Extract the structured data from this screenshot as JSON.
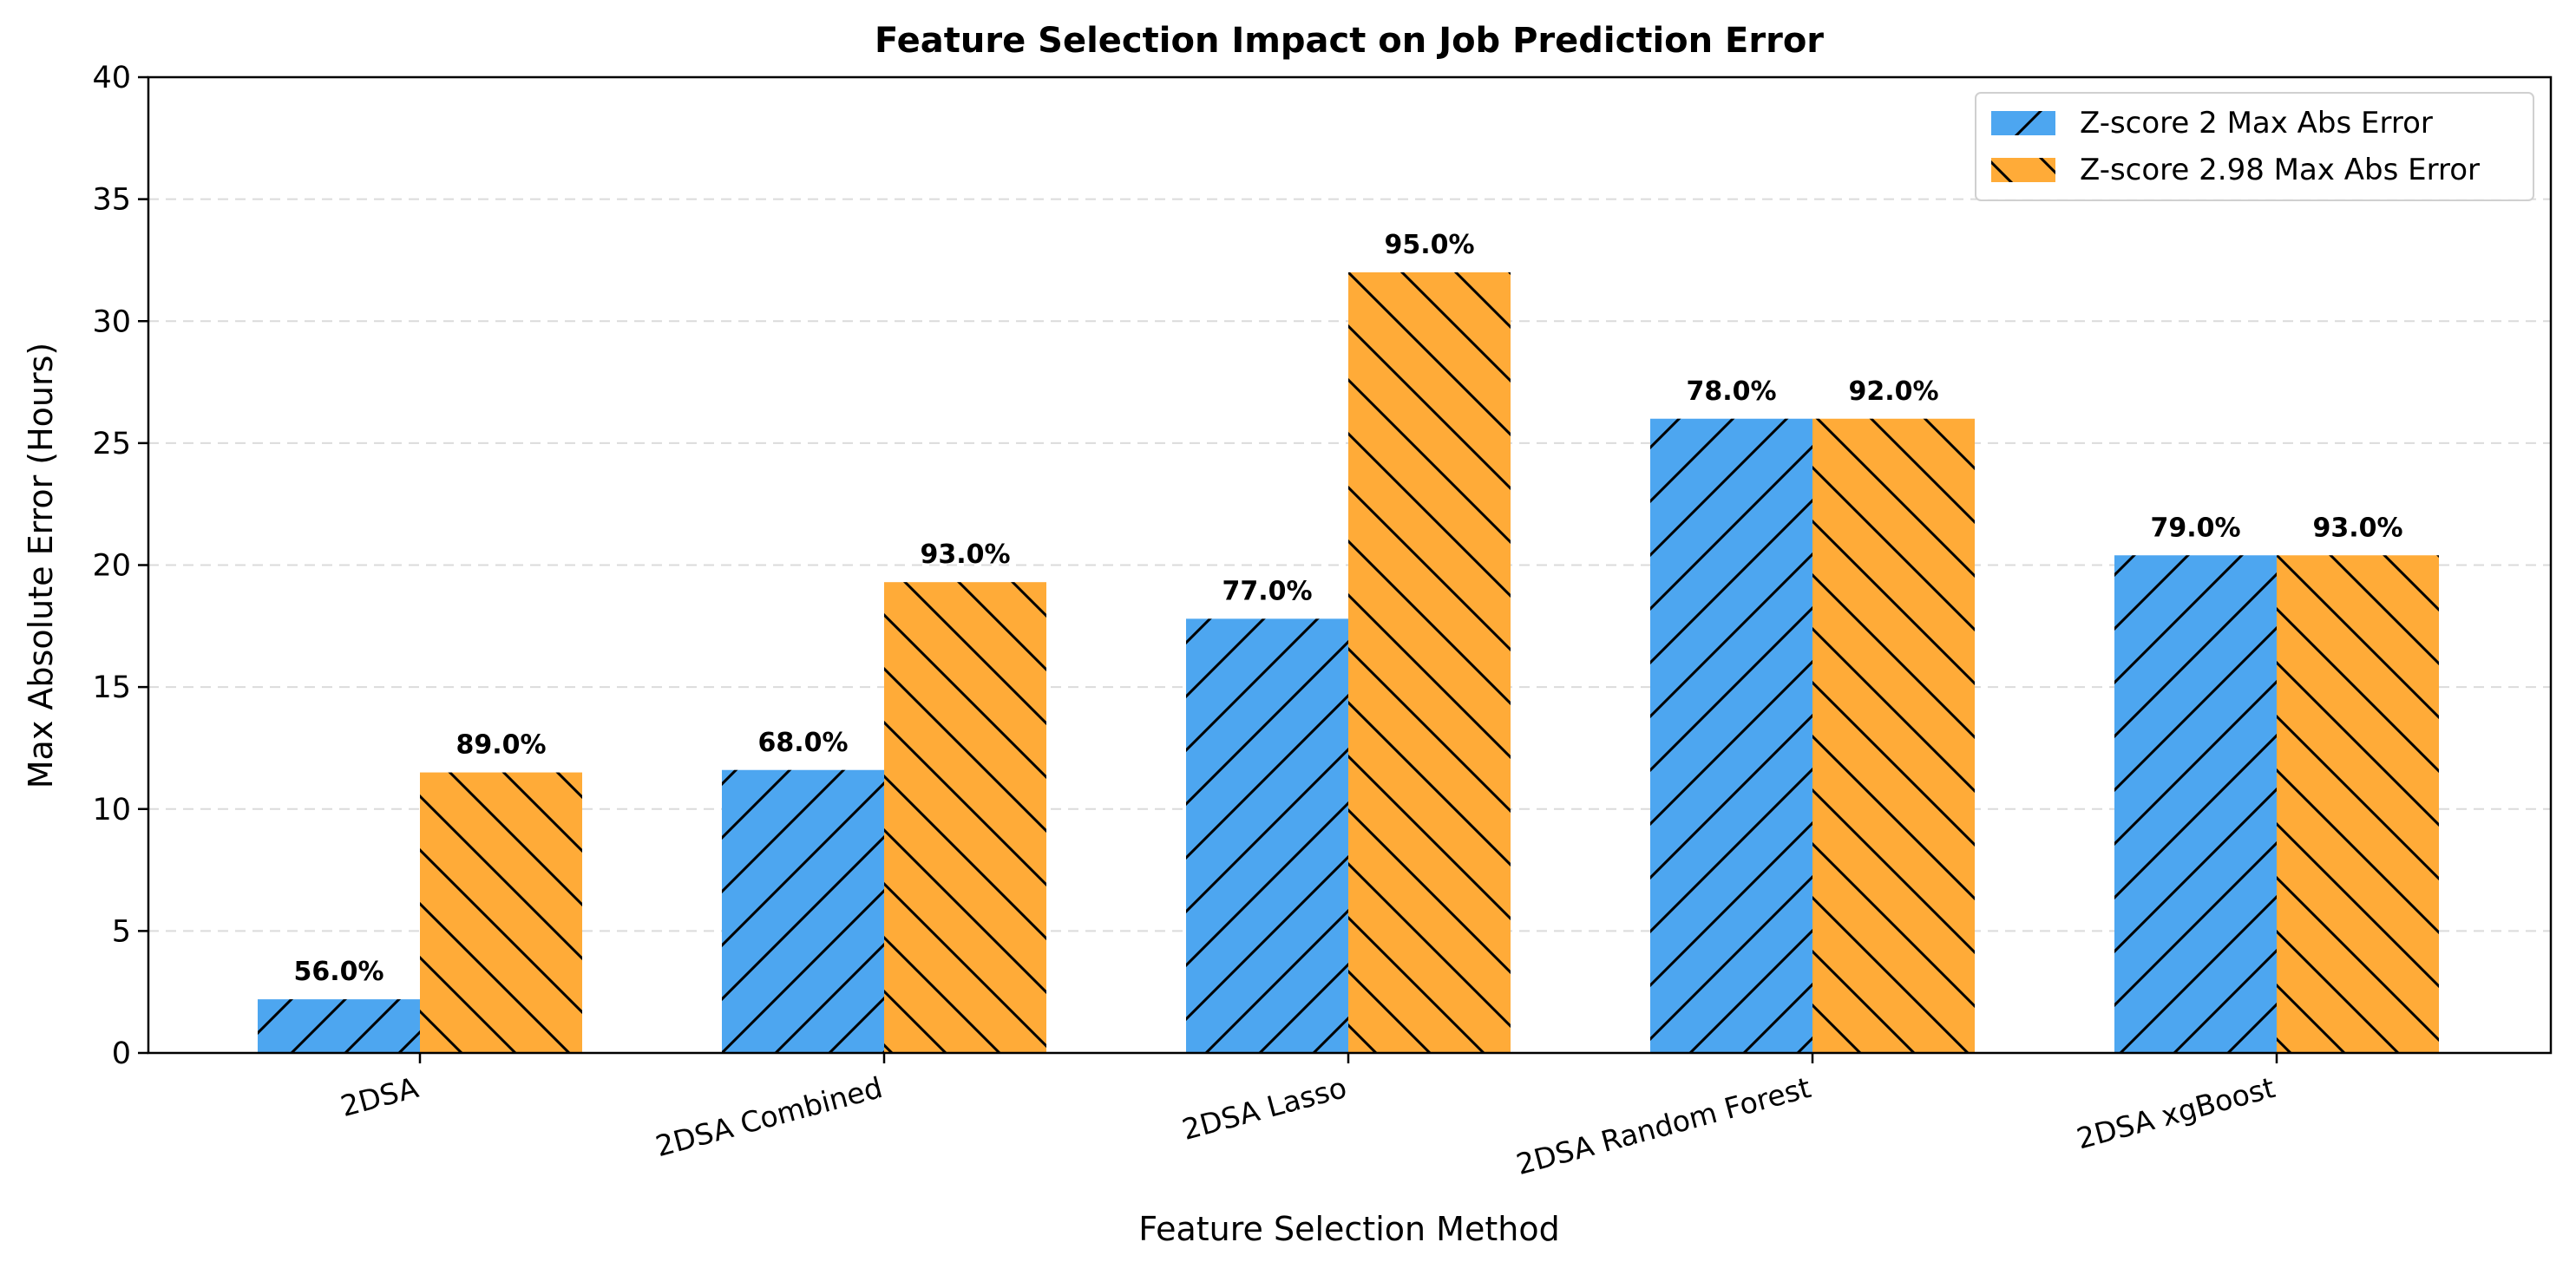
{
  "chart_data": {
    "type": "bar",
    "title": "Feature Selection Impact on Job Prediction Error",
    "xlabel": "Feature Selection Method",
    "ylabel": "Max Absolute Error (Hours)",
    "ylim": [
      0,
      40
    ],
    "yticks": [
      "0",
      "5",
      "10",
      "15",
      "20",
      "25",
      "30",
      "35",
      "40"
    ],
    "grid": "y-dashed",
    "legend_position": "top-right",
    "categories": [
      "2DSA",
      "2DSA Combined",
      "2DSA Lasso",
      "2DSA Random Forest",
      "2DSA xgBoost"
    ],
    "series": [
      {
        "name": "Z-score 2 Max Abs Error",
        "color": "#4da6f0",
        "hatch": "forward",
        "values": [
          2.2,
          11.6,
          17.8,
          26.0,
          20.4
        ],
        "labels": [
          "56.0%",
          "68.0%",
          "77.0%",
          "78.0%",
          "79.0%"
        ]
      },
      {
        "name": "Z-score 2.98 Max Abs Error",
        "color": "#ffab38",
        "hatch": "back",
        "values": [
          11.5,
          19.3,
          32.0,
          26.0,
          20.4
        ],
        "labels": [
          "89.0%",
          "93.0%",
          "95.0%",
          "92.0%",
          "93.0%"
        ]
      }
    ]
  }
}
